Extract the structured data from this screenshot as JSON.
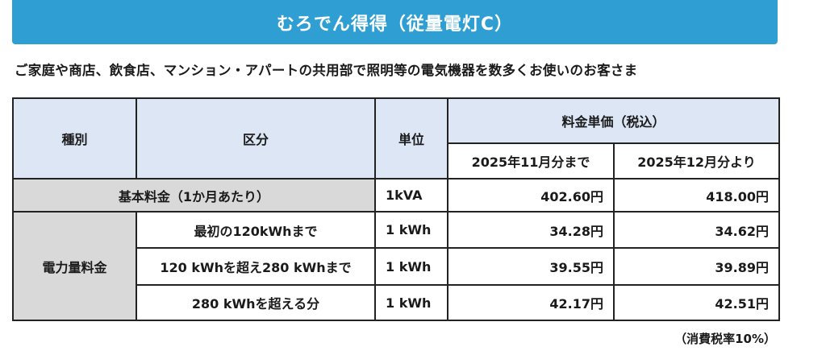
{
  "title": "むろでん得得（従量電灯C）",
  "subtitle": "ご家庭や商店、飲食店、マンション・アパートの共用部で照明等の電気機器を数多くお使いのお客さま",
  "table": {
    "headers": {
      "type": "種別",
      "category": "区分",
      "unit": "単位",
      "price_group": "料金単価（税込）",
      "period1": "2025年11月分まで",
      "period2": "2025年12月分より"
    },
    "basic": {
      "label": "基本料金（1か月あたり）",
      "unit": "1kVA",
      "price1": "402.60円",
      "price2": "418.00円"
    },
    "energy": {
      "label": "電力量料金",
      "rows": [
        {
          "category": "最初の120kWhまで",
          "unit": "1 kWh",
          "price1": "34.28円",
          "price2": "34.62円"
        },
        {
          "category": "120 kWhを超え280 kWhまで",
          "unit": "1 kWh",
          "price1": "39.55円",
          "price2": "39.89円"
        },
        {
          "category": "280 kWhを超える分",
          "unit": "1 kWh",
          "price1": "42.17円",
          "price2": "42.51円"
        }
      ]
    }
  },
  "note": "（消費税率10%）",
  "colors": {
    "title_bg": "#2f9fd3",
    "header_bg": "#dce6f5",
    "gray_bg": "#d9d9d9"
  }
}
